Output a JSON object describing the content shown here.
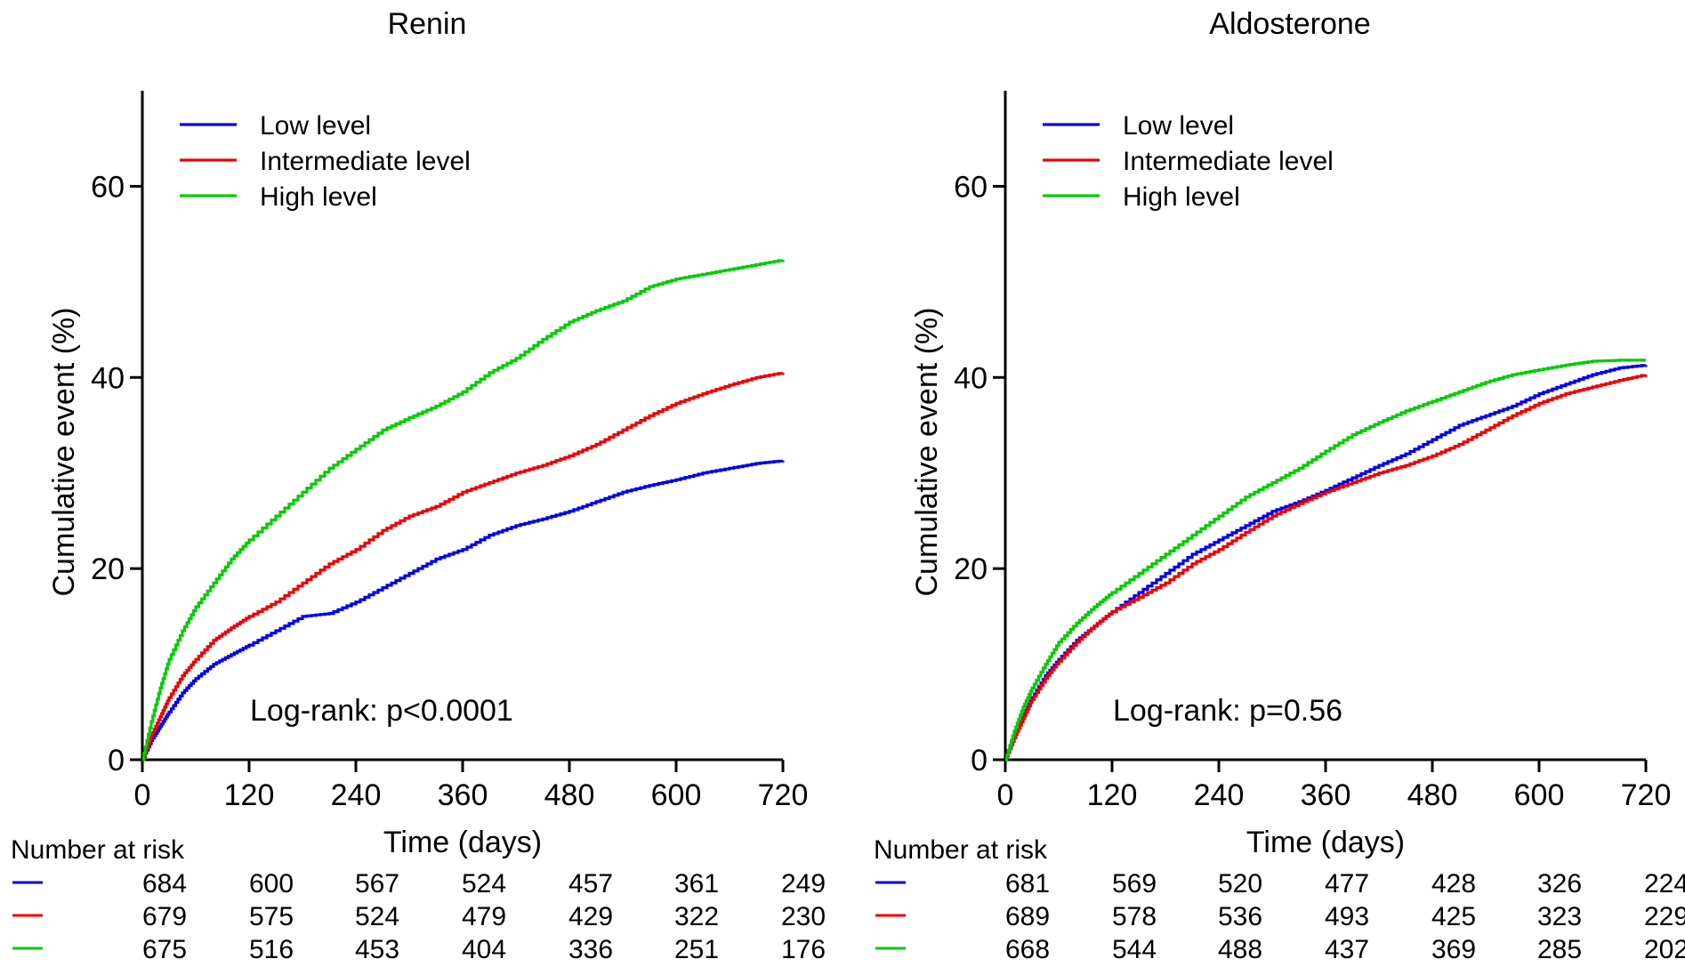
{
  "chart_data": [
    {
      "type": "line",
      "title": "Renin",
      "xlabel": "Time (days)",
      "ylabel": "Cumulative event (%)",
      "xlim": [
        0,
        720
      ],
      "ylim": [
        0,
        70
      ],
      "xticks": [
        0,
        120,
        240,
        360,
        480,
        600,
        720
      ],
      "yticks": [
        0,
        20,
        40,
        60
      ],
      "annotation": "Log-rank: p<0.0001",
      "legend_position": "top-left",
      "risk_table": {
        "title": "Number at risk",
        "times": [
          0,
          120,
          240,
          360,
          480,
          600,
          720
        ],
        "rows": [
          {
            "series": "Low level",
            "values": [
              684,
              600,
              567,
              524,
              457,
              361,
              249
            ]
          },
          {
            "series": "Intermediate level",
            "values": [
              679,
              575,
              524,
              479,
              429,
              322,
              230
            ]
          },
          {
            "series": "High level",
            "values": [
              675,
              516,
              453,
              404,
              336,
              251,
              176
            ]
          }
        ]
      },
      "series": [
        {
          "name": "Low level",
          "color": "#0000ee",
          "points": [
            [
              0,
              0
            ],
            [
              10,
              2
            ],
            [
              20,
              3.5
            ],
            [
              30,
              5
            ],
            [
              45,
              7
            ],
            [
              60,
              8.5
            ],
            [
              80,
              10
            ],
            [
              100,
              11
            ],
            [
              120,
              12
            ],
            [
              150,
              13.5
            ],
            [
              180,
              15
            ],
            [
              210,
              15.3
            ],
            [
              240,
              16.5
            ],
            [
              270,
              18
            ],
            [
              300,
              19.5
            ],
            [
              330,
              21
            ],
            [
              360,
              22
            ],
            [
              390,
              23.5
            ],
            [
              420,
              24.5
            ],
            [
              450,
              25.2
            ],
            [
              480,
              26
            ],
            [
              510,
              27
            ],
            [
              540,
              28
            ],
            [
              570,
              28.7
            ],
            [
              600,
              29.3
            ],
            [
              630,
              30
            ],
            [
              660,
              30.5
            ],
            [
              690,
              31
            ],
            [
              720,
              31.3
            ]
          ]
        },
        {
          "name": "Intermediate level",
          "color": "#ee0000",
          "points": [
            [
              0,
              0
            ],
            [
              10,
              2.5
            ],
            [
              20,
              4.5
            ],
            [
              30,
              6.5
            ],
            [
              45,
              8.8
            ],
            [
              60,
              10.5
            ],
            [
              80,
              12.5
            ],
            [
              100,
              13.8
            ],
            [
              120,
              15
            ],
            [
              150,
              16.5
            ],
            [
              180,
              18.5
            ],
            [
              210,
              20.5
            ],
            [
              240,
              22
            ],
            [
              270,
              24
            ],
            [
              300,
              25.5
            ],
            [
              330,
              26.5
            ],
            [
              360,
              28
            ],
            [
              390,
              29
            ],
            [
              420,
              30
            ],
            [
              450,
              30.8
            ],
            [
              480,
              31.8
            ],
            [
              510,
              33
            ],
            [
              540,
              34.5
            ],
            [
              570,
              36
            ],
            [
              600,
              37.3
            ],
            [
              630,
              38.3
            ],
            [
              660,
              39.2
            ],
            [
              690,
              40
            ],
            [
              720,
              40.5
            ]
          ]
        },
        {
          "name": "High level",
          "color": "#00cc00",
          "points": [
            [
              0,
              0
            ],
            [
              10,
              4
            ],
            [
              20,
              7.5
            ],
            [
              30,
              10.5
            ],
            [
              45,
              13.5
            ],
            [
              60,
              16
            ],
            [
              80,
              18.5
            ],
            [
              100,
              21
            ],
            [
              120,
              23
            ],
            [
              150,
              25.5
            ],
            [
              180,
              28
            ],
            [
              210,
              30.5
            ],
            [
              240,
              32.5
            ],
            [
              270,
              34.5
            ],
            [
              300,
              35.8
            ],
            [
              330,
              37
            ],
            [
              360,
              38.5
            ],
            [
              390,
              40.5
            ],
            [
              420,
              42
            ],
            [
              450,
              44
            ],
            [
              480,
              45.8
            ],
            [
              510,
              47
            ],
            [
              540,
              48
            ],
            [
              570,
              49.5
            ],
            [
              600,
              50.3
            ],
            [
              630,
              50.8
            ],
            [
              660,
              51.3
            ],
            [
              690,
              51.8
            ],
            [
              720,
              52.3
            ]
          ]
        }
      ]
    },
    {
      "type": "line",
      "title": "Aldosterone",
      "xlabel": "Time (days)",
      "ylabel": "Cumulative event (%)",
      "xlim": [
        0,
        720
      ],
      "ylim": [
        0,
        70
      ],
      "xticks": [
        0,
        120,
        240,
        360,
        480,
        600,
        720
      ],
      "yticks": [
        0,
        20,
        40,
        60
      ],
      "annotation": "Log-rank: p=0.56",
      "legend_position": "top-left",
      "risk_table": {
        "title": "Number at risk",
        "times": [
          0,
          120,
          240,
          360,
          480,
          600,
          720
        ],
        "rows": [
          {
            "series": "Low level",
            "values": [
              681,
              569,
              520,
              477,
              428,
              326,
              224
            ]
          },
          {
            "series": "Intermediate level",
            "values": [
              689,
              578,
              536,
              493,
              425,
              323,
              229
            ]
          },
          {
            "series": "High level",
            "values": [
              668,
              544,
              488,
              437,
              369,
              285,
              202
            ]
          }
        ]
      },
      "series": [
        {
          "name": "Low level",
          "color": "#0000ee",
          "points": [
            [
              0,
              0
            ],
            [
              10,
              2.5
            ],
            [
              20,
              4.5
            ],
            [
              30,
              6.5
            ],
            [
              45,
              8.8
            ],
            [
              60,
              10.5
            ],
            [
              80,
              12.5
            ],
            [
              100,
              14
            ],
            [
              120,
              15.5
            ],
            [
              150,
              17.5
            ],
            [
              180,
              19.5
            ],
            [
              210,
              21.5
            ],
            [
              240,
              23
            ],
            [
              270,
              24.5
            ],
            [
              300,
              26
            ],
            [
              330,
              27
            ],
            [
              360,
              28.2
            ],
            [
              390,
              29.5
            ],
            [
              420,
              30.8
            ],
            [
              450,
              32
            ],
            [
              480,
              33.5
            ],
            [
              510,
              35
            ],
            [
              540,
              36
            ],
            [
              570,
              37
            ],
            [
              600,
              38.3
            ],
            [
              630,
              39.3
            ],
            [
              660,
              40.3
            ],
            [
              690,
              41
            ],
            [
              720,
              41.3
            ]
          ]
        },
        {
          "name": "Intermediate level",
          "color": "#ee0000",
          "points": [
            [
              0,
              0
            ],
            [
              10,
              2.3
            ],
            [
              20,
              4.3
            ],
            [
              30,
              6.3
            ],
            [
              45,
              8.5
            ],
            [
              60,
              10.3
            ],
            [
              80,
              12.3
            ],
            [
              100,
              14
            ],
            [
              120,
              15.5
            ],
            [
              150,
              17
            ],
            [
              180,
              18.5
            ],
            [
              210,
              20.5
            ],
            [
              240,
              22
            ],
            [
              270,
              23.8
            ],
            [
              300,
              25.5
            ],
            [
              330,
              26.8
            ],
            [
              360,
              28
            ],
            [
              390,
              29
            ],
            [
              420,
              30
            ],
            [
              450,
              30.8
            ],
            [
              480,
              31.8
            ],
            [
              510,
              33
            ],
            [
              540,
              34.5
            ],
            [
              570,
              36
            ],
            [
              600,
              37.3
            ],
            [
              630,
              38.3
            ],
            [
              660,
              39
            ],
            [
              690,
              39.7
            ],
            [
              720,
              40.3
            ]
          ]
        },
        {
          "name": "High level",
          "color": "#00cc00",
          "points": [
            [
              0,
              0
            ],
            [
              10,
              3
            ],
            [
              20,
              5.5
            ],
            [
              30,
              7.5
            ],
            [
              45,
              10
            ],
            [
              60,
              12.3
            ],
            [
              80,
              14.3
            ],
            [
              100,
              16
            ],
            [
              120,
              17.5
            ],
            [
              150,
              19.5
            ],
            [
              180,
              21.5
            ],
            [
              210,
              23.5
            ],
            [
              240,
              25.5
            ],
            [
              270,
              27.5
            ],
            [
              300,
              29
            ],
            [
              330,
              30.5
            ],
            [
              360,
              32.3
            ],
            [
              390,
              34
            ],
            [
              420,
              35.3
            ],
            [
              450,
              36.5
            ],
            [
              480,
              37.5
            ],
            [
              510,
              38.5
            ],
            [
              540,
              39.5
            ],
            [
              570,
              40.3
            ],
            [
              600,
              40.8
            ],
            [
              630,
              41.3
            ],
            [
              660,
              41.7
            ],
            [
              690,
              41.8
            ],
            [
              720,
              41.8
            ]
          ]
        }
      ]
    }
  ]
}
